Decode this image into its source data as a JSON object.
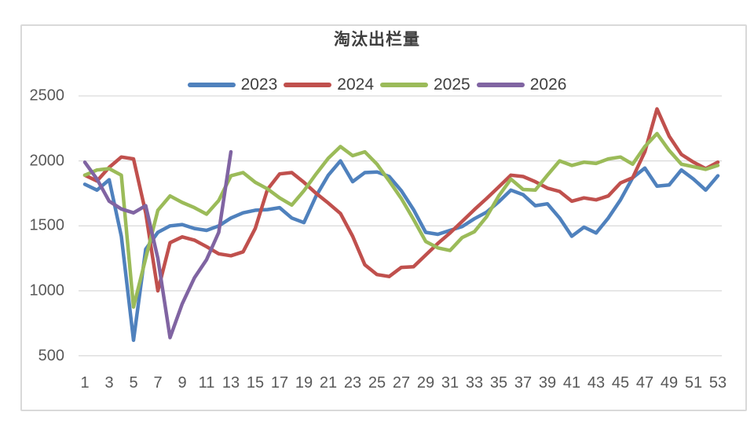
{
  "page": {
    "background_color": "#ffffff",
    "frame_border_color": "#d9d9d9"
  },
  "chart_data": {
    "type": "line",
    "title": "淘汰出栏量",
    "xlabel": "",
    "ylabel": "",
    "xlim": [
      1,
      53
    ],
    "ylim": [
      500,
      2500
    ],
    "grid": true,
    "grid_color": "#d9d9d9",
    "axis_text_color": "#595959",
    "legend_position": "top",
    "x_ticks": [
      1,
      3,
      5,
      7,
      9,
      11,
      13,
      15,
      17,
      19,
      21,
      23,
      25,
      27,
      29,
      31,
      33,
      35,
      37,
      39,
      41,
      43,
      45,
      47,
      49,
      51,
      53
    ],
    "y_ticks": [
      2500,
      2000,
      1500,
      1000,
      500
    ],
    "x_unit": "week",
    "series": [
      {
        "name": "2023",
        "color": "#4F81BD",
        "start_week": 1,
        "values": [
          1820,
          1775,
          1855,
          1420,
          620,
          1320,
          1450,
          1500,
          1510,
          1480,
          1465,
          1500,
          1560,
          1600,
          1620,
          1625,
          1640,
          1560,
          1525,
          1730,
          1890,
          2000,
          1840,
          1910,
          1915,
          1880,
          1770,
          1625,
          1450,
          1435,
          1465,
          1495,
          1555,
          1605,
          1685,
          1775,
          1740,
          1655,
          1670,
          1560,
          1420,
          1490,
          1445,
          1560,
          1700,
          1870,
          1945,
          1805,
          1815,
          1930,
          1860,
          1775,
          1885
        ]
      },
      {
        "name": "2024",
        "color": "#C0504D",
        "start_week": 1,
        "values": [
          1890,
          1845,
          1950,
          2030,
          2015,
          1600,
          1000,
          1370,
          1415,
          1390,
          1340,
          1285,
          1270,
          1300,
          1480,
          1780,
          1900,
          1910,
          1835,
          1750,
          1675,
          1595,
          1420,
          1200,
          1125,
          1110,
          1180,
          1185,
          1275,
          1365,
          1445,
          1535,
          1625,
          1710,
          1800,
          1890,
          1880,
          1840,
          1790,
          1765,
          1690,
          1715,
          1700,
          1730,
          1830,
          1870,
          2070,
          2400,
          2190,
          2050,
          1990,
          1940,
          1990
        ]
      },
      {
        "name": "2025",
        "color": "#9BBB59",
        "start_week": 1,
        "values": [
          1890,
          1930,
          1940,
          1890,
          875,
          1250,
          1620,
          1730,
          1680,
          1640,
          1590,
          1695,
          1885,
          1910,
          1835,
          1785,
          1715,
          1660,
          1770,
          1900,
          2020,
          2110,
          2040,
          2070,
          1975,
          1845,
          1710,
          1550,
          1380,
          1330,
          1310,
          1410,
          1455,
          1570,
          1730,
          1860,
          1780,
          1775,
          1890,
          2000,
          1965,
          1990,
          1980,
          2015,
          2030,
          1975,
          2110,
          2210,
          2080,
          1975,
          1955,
          1935,
          1965
        ]
      },
      {
        "name": "2026",
        "color": "#8064A2",
        "start_week": 1,
        "values": [
          1990,
          1860,
          1690,
          1630,
          1600,
          1655,
          1250,
          640,
          900,
          1100,
          1240,
          1450,
          2070
        ]
      }
    ]
  }
}
